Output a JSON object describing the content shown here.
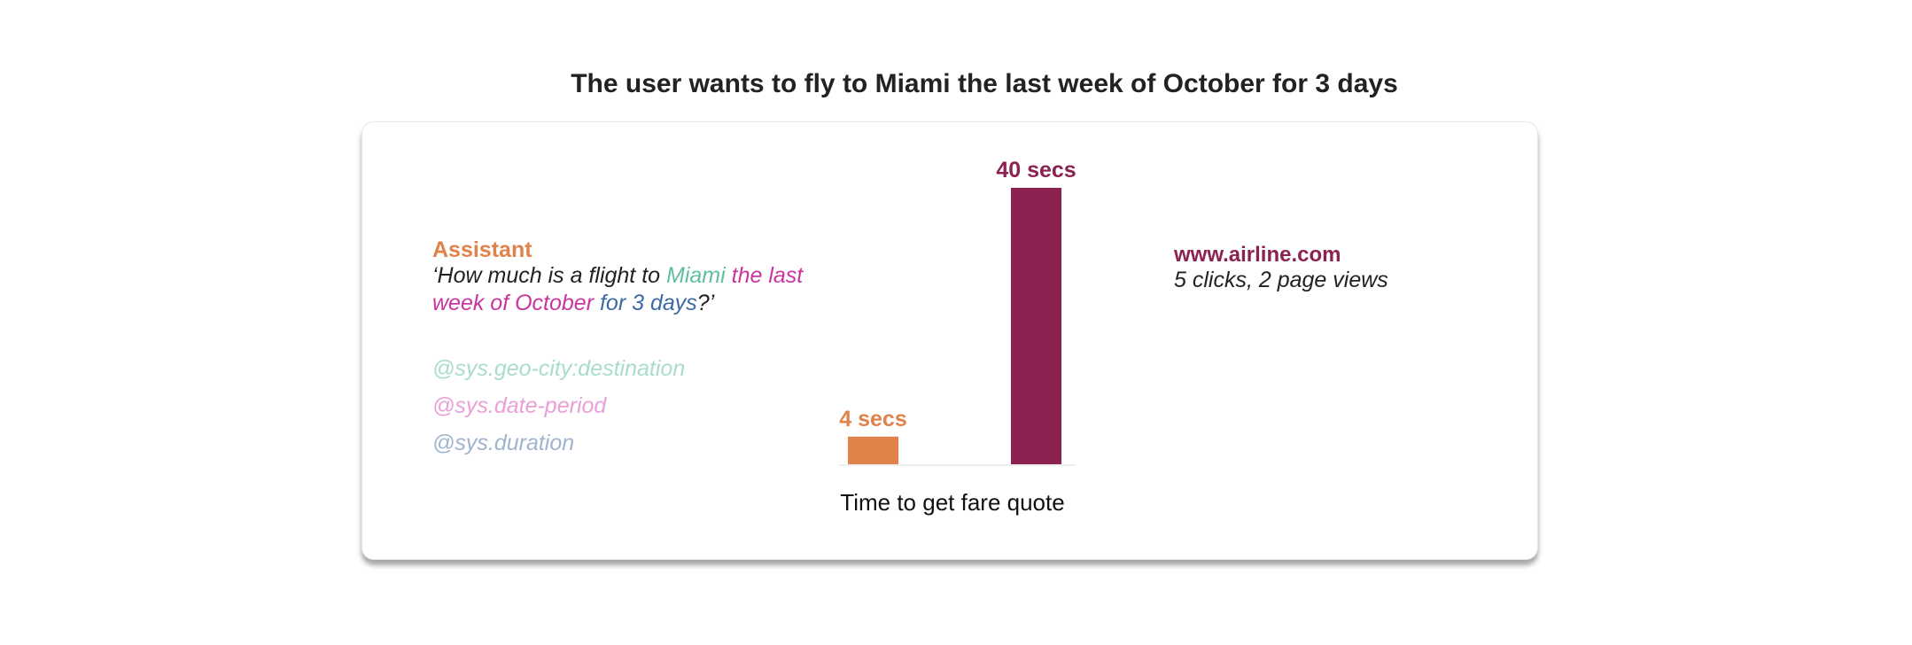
{
  "title": "The user wants to fly to Miami the last week of October for 3 days",
  "assistant": {
    "label": "Assistant",
    "label_color": "#e0824a",
    "query": [
      {
        "text": "‘How much is a flight to ",
        "color": "#222222"
      },
      {
        "text": "Miami",
        "color": "#5fbf9f"
      },
      {
        "text": " the last week of October",
        "color": "#c9359f"
      },
      {
        "text": " for 3 days",
        "color": "#3d6aa6"
      },
      {
        "text": "?’",
        "color": "#222222"
      }
    ]
  },
  "entities": [
    {
      "text": "@sys.geo-city:destination",
      "color": "#a9dccb"
    },
    {
      "text": "@sys.date-period",
      "color": "#eaa0d6"
    },
    {
      "text": "@sys.duration",
      "color": "#9fb4cf"
    }
  ],
  "website": {
    "name": "www.airline.com",
    "detail": "5 clicks, 2 page views",
    "color": "#8b2252"
  },
  "chart_data": {
    "type": "bar",
    "xlabel": "Time to get fare quote",
    "categories": [
      null,
      null
    ],
    "values": [
      4,
      40
    ],
    "value_labels": [
      "4 secs",
      "40 secs"
    ],
    "colors": [
      "#e0824a",
      "#8b2252"
    ],
    "ylim": [
      0,
      40
    ]
  }
}
